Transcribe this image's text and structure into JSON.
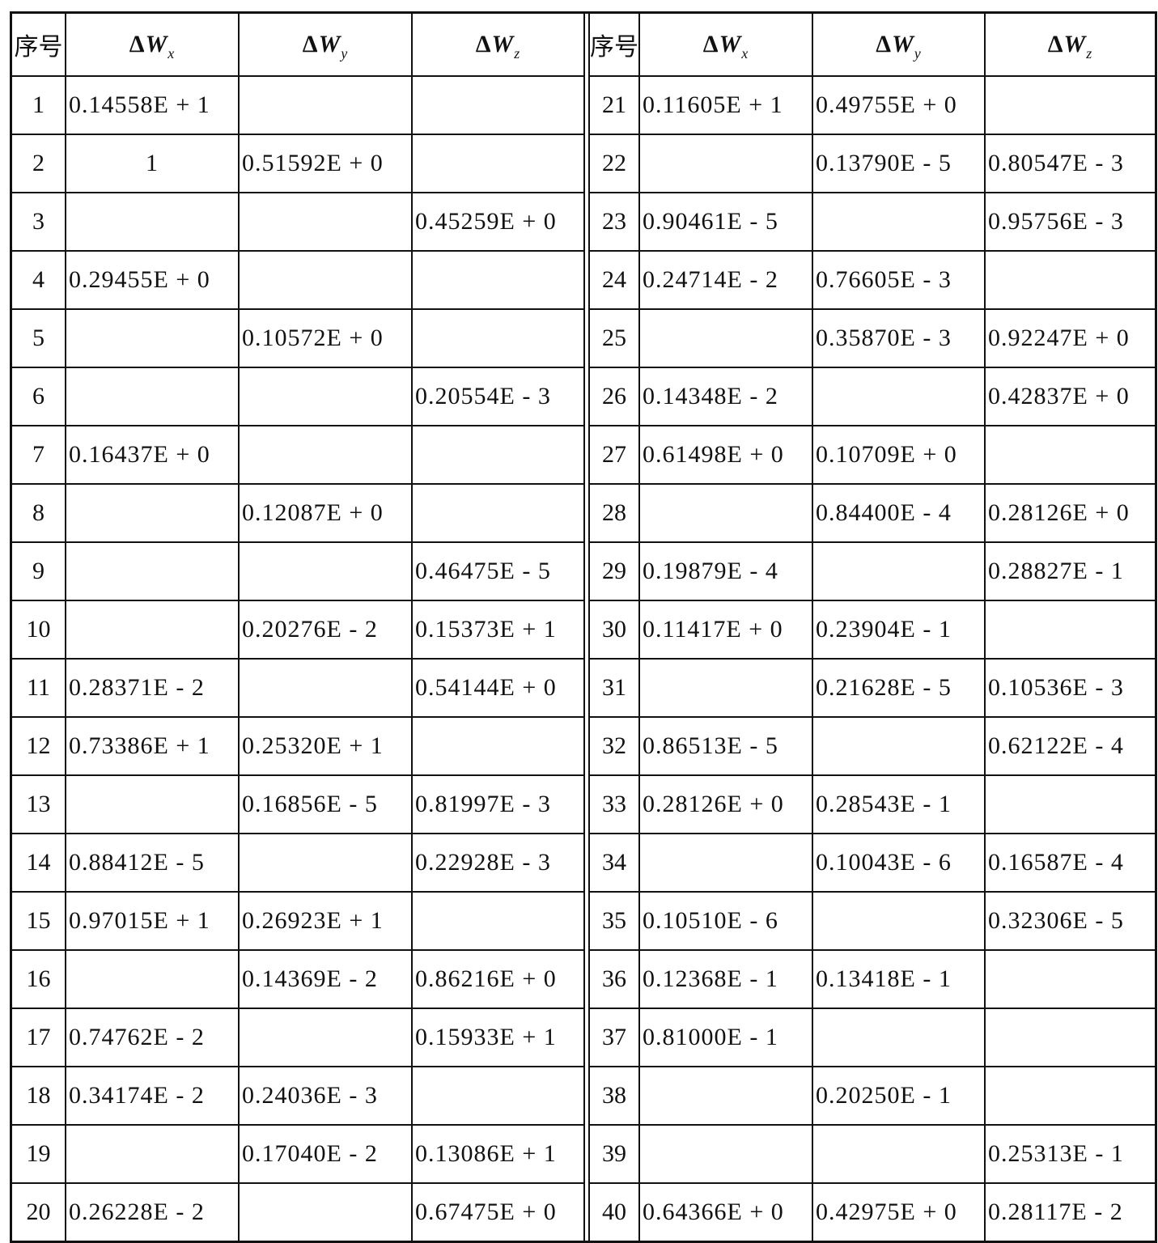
{
  "headers": {
    "index": "序号",
    "delta": "Δ",
    "W": "W",
    "sub_x": "x",
    "sub_y": "y",
    "sub_z": "z"
  },
  "left_rows": [
    [
      "1",
      "0.14558E + 1",
      "",
      ""
    ],
    [
      "2",
      "1",
      "0.51592E + 0",
      ""
    ],
    [
      "3",
      "",
      "",
      "0.45259E + 0"
    ],
    [
      "4",
      "0.29455E + 0",
      "",
      ""
    ],
    [
      "5",
      "",
      "0.10572E + 0",
      ""
    ],
    [
      "6",
      "",
      "",
      "0.20554E - 3"
    ],
    [
      "7",
      "0.16437E + 0",
      "",
      ""
    ],
    [
      "8",
      "",
      "0.12087E + 0",
      ""
    ],
    [
      "9",
      "",
      "",
      "0.46475E - 5"
    ],
    [
      "10",
      "",
      "0.20276E - 2",
      "0.15373E + 1"
    ],
    [
      "11",
      "0.28371E - 2",
      "",
      "0.54144E + 0"
    ],
    [
      "12",
      "0.73386E + 1",
      "0.25320E + 1",
      ""
    ],
    [
      "13",
      "",
      "0.16856E - 5",
      "0.81997E - 3"
    ],
    [
      "14",
      "0.88412E - 5",
      "",
      "0.22928E - 3"
    ],
    [
      "15",
      "0.97015E + 1",
      "0.26923E + 1",
      ""
    ],
    [
      "16",
      "",
      "0.14369E - 2",
      "0.86216E + 0"
    ],
    [
      "17",
      "0.74762E - 2",
      "",
      "0.15933E + 1"
    ],
    [
      "18",
      "0.34174E - 2",
      "0.24036E - 3",
      ""
    ],
    [
      "19",
      "",
      "0.17040E - 2",
      "0.13086E + 1"
    ],
    [
      "20",
      "0.26228E - 2",
      "",
      "0.67475E + 0"
    ]
  ],
  "right_rows": [
    [
      "21",
      "0.11605E + 1",
      "0.49755E + 0",
      ""
    ],
    [
      "22",
      "",
      "0.13790E - 5",
      "0.80547E - 3"
    ],
    [
      "23",
      "0.90461E - 5",
      "",
      "0.95756E - 3"
    ],
    [
      "24",
      "0.24714E - 2",
      "0.76605E - 3",
      ""
    ],
    [
      "25",
      "",
      "0.35870E - 3",
      "0.92247E + 0"
    ],
    [
      "26",
      "0.14348E - 2",
      "",
      "0.42837E + 0"
    ],
    [
      "27",
      "0.61498E + 0",
      "0.10709E + 0",
      ""
    ],
    [
      "28",
      "",
      "0.84400E - 4",
      "0.28126E + 0"
    ],
    [
      "29",
      "0.19879E - 4",
      "",
      "0.28827E - 1"
    ],
    [
      "30",
      "0.11417E + 0",
      "0.23904E - 1",
      ""
    ],
    [
      "31",
      "",
      "0.21628E - 5",
      "0.10536E - 3"
    ],
    [
      "32",
      "0.86513E - 5",
      "",
      "0.62122E - 4"
    ],
    [
      "33",
      "0.28126E + 0",
      "0.28543E - 1",
      ""
    ],
    [
      "34",
      "",
      "0.10043E - 6",
      "0.16587E - 4"
    ],
    [
      "35",
      "0.10510E - 6",
      "",
      "0.32306E - 5"
    ],
    [
      "36",
      "0.12368E - 1",
      "0.13418E - 1",
      ""
    ],
    [
      "37",
      "0.81000E - 1",
      "",
      ""
    ],
    [
      "38",
      "",
      "0.20250E - 1",
      ""
    ],
    [
      "39",
      "",
      "",
      "0.25313E - 1"
    ],
    [
      "40",
      "0.64366E + 0",
      "0.42975E + 0",
      "0.28117E - 2"
    ]
  ]
}
